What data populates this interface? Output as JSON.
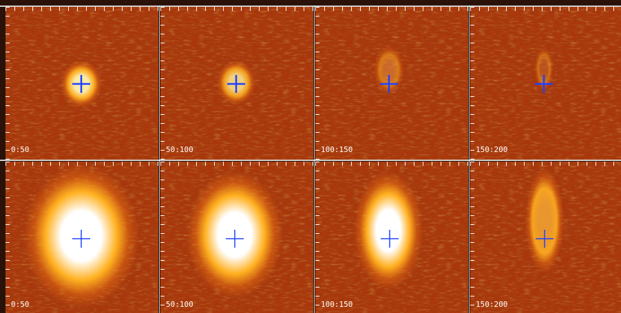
{
  "panels": [
    {
      "label": "0:50"
    },
    {
      "label": "50:100"
    },
    {
      "label": "100:150"
    },
    {
      "label": "150:200"
    },
    {
      "label": "0:50"
    },
    {
      "label": "50:100"
    },
    {
      "label": "100:150"
    },
    {
      "label": "150:200"
    }
  ]
}
